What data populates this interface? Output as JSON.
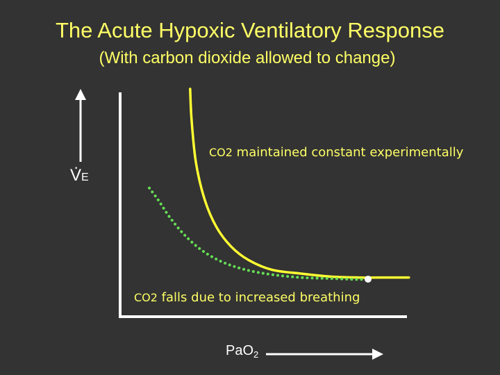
{
  "title": "The Acute Hypoxic Ventilatory Response",
  "subtitle": "(With carbon dioxide allowed to change)",
  "colors": {
    "background": "#333333",
    "title": "#ffff66",
    "constant_curve": "#ffff33",
    "falling_curve": "#66dd55",
    "axes": "#ffffff"
  },
  "chart_data": {
    "type": "line",
    "title": "The Acute Hypoxic Ventilatory Response",
    "subtitle": "(With carbon dioxide allowed to change)",
    "xlabel": {
      "main": "PaO",
      "sub": "2"
    },
    "ylabel": {
      "dot": "·",
      "main": "V",
      "sub": "E"
    },
    "axis_ranges_note": "schematic, no tick values",
    "grid": false,
    "xlim": [
      0,
      1
    ],
    "ylim": [
      0,
      1
    ],
    "series": [
      {
        "key": "constant",
        "style": "solid",
        "label": {
          "co2": "CO2",
          "text": " maintained constant experimentally"
        },
        "x": [
          0.24,
          0.245,
          0.26,
          0.29,
          0.33,
          0.38,
          0.44,
          0.52,
          0.62,
          0.72,
          0.82,
          0.92,
          0.99
        ],
        "y": [
          1.0,
          0.84,
          0.62,
          0.43,
          0.29,
          0.19,
          0.12,
          0.07,
          0.05,
          0.035,
          0.03,
          0.03,
          0.03
        ]
      },
      {
        "key": "falling",
        "style": "dotted",
        "label": {
          "co2": "CO2",
          "text": " falls due to increased breathing"
        },
        "x": [
          0.1,
          0.13,
          0.17,
          0.22,
          0.28,
          0.35,
          0.43,
          0.52,
          0.62,
          0.72,
          0.82,
          0.85
        ],
        "y": [
          0.49,
          0.43,
          0.34,
          0.25,
          0.17,
          0.11,
          0.07,
          0.045,
          0.03,
          0.025,
          0.02,
          0.025
        ]
      }
    ],
    "markers": [
      {
        "x": 0.85,
        "y": 0.025,
        "shape": "circle",
        "color": "#ffffff"
      }
    ]
  }
}
